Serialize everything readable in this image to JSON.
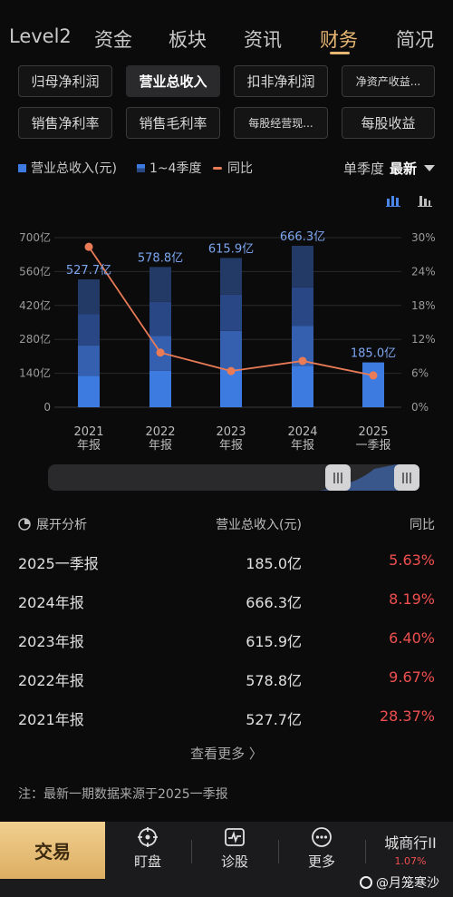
{
  "tabs": [
    {
      "label": "Level2"
    },
    {
      "label": "资金"
    },
    {
      "label": "板块"
    },
    {
      "label": "资讯"
    },
    {
      "label": "财务"
    },
    {
      "label": "简况"
    }
  ],
  "active_tab": "财务",
  "metrics": [
    {
      "label": "归母净利润"
    },
    {
      "label": "营业总收入"
    },
    {
      "label": "扣非净利润"
    },
    {
      "label": "净资产收益..."
    },
    {
      "label": "销售净利率"
    },
    {
      "label": "销售毛利率"
    },
    {
      "label": "每股经营现..."
    },
    {
      "label": "每股收益"
    }
  ],
  "active_metric": "营业总收入",
  "legend": {
    "revenue": "营业总收入(元)",
    "quarters": "1~4季度",
    "yoy": "同比",
    "period_prefix": "单季度",
    "period_selected": "最新"
  },
  "colors": {
    "bar_light": "#3d7be0",
    "bar_mid": "#3560b0",
    "bar_dark": "#2a4785",
    "bar_top": "#243a66",
    "line": "#e97b56",
    "value_label": "#7da6f0",
    "accent": "#e6b672",
    "red": "#ef4f4f"
  },
  "chart_data": {
    "type": "bar",
    "categories": [
      "2021\n年报",
      "2022\n年报",
      "2023\n年报",
      "2024\n年报",
      "2025\n一季报"
    ],
    "category_lines": [
      [
        "2021",
        "年报"
      ],
      [
        "2022",
        "年报"
      ],
      [
        "2023",
        "年报"
      ],
      [
        "2024",
        "年报"
      ],
      [
        "2025",
        "一季报"
      ]
    ],
    "series": [
      {
        "name": "营业总收入(元)",
        "values": [
          527.7,
          578.8,
          615.9,
          666.3,
          185.0
        ],
        "labels": [
          "527.7亿",
          "578.8亿",
          "615.9亿",
          "666.3亿",
          "185.0亿"
        ]
      },
      {
        "name": "同比",
        "axis": "right",
        "values": [
          28.37,
          9.67,
          6.4,
          8.19,
          5.63
        ]
      }
    ],
    "quarter_stacks": [
      [
        130,
        125,
        130,
        142.7
      ],
      [
        150,
        145,
        140,
        143.8
      ],
      [
        160,
        155,
        150,
        150.9
      ],
      [
        170,
        165,
        160,
        171.3
      ],
      [
        185.0
      ]
    ],
    "y_left": {
      "ticks": [
        "0",
        "140亿",
        "280亿",
        "420亿",
        "560亿",
        "700亿"
      ],
      "range": [
        0,
        700
      ]
    },
    "y_right": {
      "ticks": [
        "0%",
        "6%",
        "12%",
        "18%",
        "24%",
        "30%"
      ],
      "range": [
        0,
        30
      ]
    }
  },
  "table": {
    "header": {
      "col1": "展开分析",
      "col2": "营业总收入(元)",
      "col3": "同比"
    },
    "rows": [
      {
        "period": "2025一季报",
        "value": "185.0亿",
        "yoy": "5.63%"
      },
      {
        "period": "2024年报",
        "value": "666.3亿",
        "yoy": "8.19%"
      },
      {
        "period": "2023年报",
        "value": "615.9亿",
        "yoy": "6.40%"
      },
      {
        "period": "2022年报",
        "value": "578.8亿",
        "yoy": "9.67%"
      },
      {
        "period": "2021年报",
        "value": "527.7亿",
        "yoy": "28.37%"
      }
    ],
    "more": "查看更多 〉"
  },
  "note": "注：最新一期数据来源于2025一季报",
  "bottom_nav": {
    "trade": "交易",
    "items": [
      {
        "label": "盯盘",
        "icon": "target-icon"
      },
      {
        "label": "诊股",
        "icon": "pulse-icon"
      },
      {
        "label": "更多",
        "icon": "more-icon"
      }
    ],
    "stock_name": "城商行II",
    "stock_change": "1.07%"
  },
  "watermark": "@月笼寒沙"
}
